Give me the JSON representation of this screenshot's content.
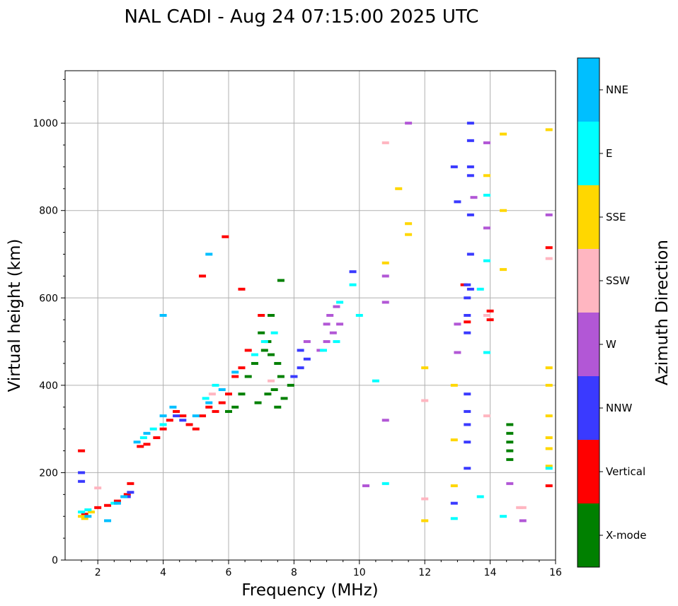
{
  "chart_data": {
    "type": "scatter",
    "title": "NAL CADI - Aug 24 07:15:00 2025 UTC",
    "xlabel": "Frequency (MHz)",
    "ylabel": "Virtual height (km)",
    "xlim": [
      1,
      16
    ],
    "ylim": [
      0,
      1120
    ],
    "xticks": [
      2,
      4,
      6,
      8,
      10,
      12,
      14,
      16
    ],
    "yticks": [
      0,
      200,
      400,
      600,
      800,
      1000
    ],
    "grid": true,
    "colorbar": {
      "label": "Azimuth Direction",
      "categories": [
        "X-mode",
        "Vertical",
        "NNW",
        "W",
        "SSW",
        "SSE",
        "E",
        "NNE"
      ],
      "colors": [
        "#008000",
        "#ff0000",
        "#3a3aff",
        "#b257d6",
        "#ffb6c1",
        "#ffd700",
        "#00ffff",
        "#00bfff"
      ]
    },
    "series": [
      {
        "name": "X-mode",
        "points": [
          [
            7.5,
            350
          ],
          [
            7.7,
            370
          ],
          [
            7.9,
            400
          ],
          [
            8.0,
            420
          ],
          [
            7.4,
            390
          ],
          [
            7.6,
            420
          ],
          [
            7.5,
            450
          ],
          [
            7.3,
            470
          ],
          [
            7.2,
            500
          ],
          [
            7.0,
            520
          ],
          [
            7.1,
            480
          ],
          [
            6.8,
            450
          ],
          [
            6.6,
            420
          ],
          [
            6.4,
            380
          ],
          [
            6.2,
            350
          ],
          [
            6.0,
            340
          ],
          [
            6.9,
            360
          ],
          [
            7.2,
            380
          ],
          [
            7.6,
            640
          ],
          [
            7.3,
            560
          ],
          [
            14.6,
            230
          ],
          [
            14.6,
            250
          ],
          [
            14.6,
            270
          ],
          [
            14.6,
            290
          ],
          [
            14.6,
            310
          ]
        ]
      },
      {
        "name": "Vertical",
        "points": [
          [
            1.5,
            250
          ],
          [
            1.6,
            105
          ],
          [
            2.0,
            120
          ],
          [
            2.3,
            125
          ],
          [
            2.6,
            135
          ],
          [
            2.9,
            150
          ],
          [
            3.0,
            175
          ],
          [
            3.3,
            260
          ],
          [
            3.5,
            265
          ],
          [
            3.8,
            280
          ],
          [
            4.0,
            300
          ],
          [
            4.2,
            320
          ],
          [
            4.4,
            340
          ],
          [
            4.6,
            330
          ],
          [
            4.8,
            310
          ],
          [
            5.0,
            300
          ],
          [
            5.2,
            330
          ],
          [
            5.4,
            350
          ],
          [
            5.6,
            340
          ],
          [
            5.8,
            360
          ],
          [
            6.0,
            380
          ],
          [
            6.2,
            420
          ],
          [
            6.4,
            440
          ],
          [
            6.6,
            480
          ],
          [
            5.2,
            650
          ],
          [
            5.9,
            740
          ],
          [
            6.4,
            620
          ],
          [
            7.0,
            560
          ],
          [
            13.2,
            630
          ],
          [
            13.3,
            545
          ],
          [
            14.0,
            550
          ],
          [
            14.0,
            570
          ],
          [
            15.8,
            715
          ],
          [
            15.8,
            170
          ]
        ]
      },
      {
        "name": "NNW",
        "points": [
          [
            1.5,
            200
          ],
          [
            1.5,
            180
          ],
          [
            2.9,
            145
          ],
          [
            3.0,
            155
          ],
          [
            4.4,
            330
          ],
          [
            4.6,
            320
          ],
          [
            8.0,
            420
          ],
          [
            8.2,
            440
          ],
          [
            8.4,
            460
          ],
          [
            8.2,
            480
          ],
          [
            9.8,
            660
          ],
          [
            13.3,
            210
          ],
          [
            13.3,
            270
          ],
          [
            13.3,
            310
          ],
          [
            13.3,
            340
          ],
          [
            13.3,
            380
          ],
          [
            13.3,
            520
          ],
          [
            13.3,
            560
          ],
          [
            13.3,
            600
          ],
          [
            13.3,
            630
          ],
          [
            13.4,
            620
          ],
          [
            13.4,
            700
          ],
          [
            13.4,
            790
          ],
          [
            13.4,
            880
          ],
          [
            13.4,
            900
          ],
          [
            13.4,
            960
          ],
          [
            13.4,
            1000
          ],
          [
            13.0,
            820
          ],
          [
            12.9,
            900
          ],
          [
            12.9,
            130
          ]
        ]
      },
      {
        "name": "W",
        "points": [
          [
            8.8,
            480
          ],
          [
            9.0,
            500
          ],
          [
            9.2,
            520
          ],
          [
            9.4,
            540
          ],
          [
            9.1,
            560
          ],
          [
            9.3,
            580
          ],
          [
            9.0,
            540
          ],
          [
            8.4,
            500
          ],
          [
            10.8,
            650
          ],
          [
            10.8,
            590
          ],
          [
            10.8,
            320
          ],
          [
            11.5,
            1000
          ],
          [
            13.0,
            475
          ],
          [
            13.0,
            540
          ],
          [
            13.5,
            830
          ],
          [
            13.9,
            760
          ],
          [
            13.9,
            955
          ],
          [
            14.6,
            175
          ],
          [
            15.0,
            90
          ],
          [
            15.8,
            790
          ],
          [
            10.2,
            170
          ]
        ]
      },
      {
        "name": "SSW",
        "points": [
          [
            2.0,
            165
          ],
          [
            5.5,
            380
          ],
          [
            7.3,
            410
          ],
          [
            12.0,
            365
          ],
          [
            12.0,
            140
          ],
          [
            13.9,
            330
          ],
          [
            13.9,
            560
          ],
          [
            14.9,
            120
          ],
          [
            15.0,
            120
          ],
          [
            15.8,
            690
          ],
          [
            10.8,
            955
          ]
        ]
      },
      {
        "name": "SSE",
        "points": [
          [
            1.5,
            100
          ],
          [
            1.6,
            95
          ],
          [
            1.8,
            110
          ],
          [
            10.8,
            680
          ],
          [
            11.2,
            850
          ],
          [
            11.5,
            770
          ],
          [
            11.5,
            745
          ],
          [
            12.0,
            440
          ],
          [
            12.0,
            90
          ],
          [
            12.9,
            400
          ],
          [
            12.9,
            275
          ],
          [
            12.9,
            170
          ],
          [
            14.4,
            800
          ],
          [
            14.4,
            665
          ],
          [
            14.4,
            975
          ],
          [
            13.9,
            880
          ],
          [
            15.8,
            985
          ],
          [
            15.8,
            440
          ],
          [
            15.8,
            400
          ],
          [
            15.8,
            330
          ],
          [
            15.8,
            280
          ],
          [
            15.8,
            255
          ],
          [
            15.8,
            215
          ]
        ]
      },
      {
        "name": "E",
        "points": [
          [
            1.5,
            110
          ],
          [
            1.7,
            115
          ],
          [
            2.5,
            130
          ],
          [
            3.4,
            280
          ],
          [
            3.7,
            300
          ],
          [
            4.0,
            310
          ],
          [
            5.3,
            370
          ],
          [
            5.6,
            400
          ],
          [
            6.8,
            470
          ],
          [
            7.1,
            500
          ],
          [
            7.4,
            520
          ],
          [
            8.9,
            480
          ],
          [
            9.3,
            500
          ],
          [
            9.4,
            590
          ],
          [
            9.8,
            630
          ],
          [
            10.0,
            560
          ],
          [
            10.5,
            410
          ],
          [
            10.8,
            175
          ],
          [
            12.9,
            95
          ],
          [
            13.7,
            145
          ],
          [
            13.7,
            620
          ],
          [
            13.9,
            835
          ],
          [
            13.9,
            685
          ],
          [
            13.9,
            475
          ],
          [
            14.4,
            100
          ],
          [
            15.8,
            210
          ]
        ]
      },
      {
        "name": "NNE",
        "points": [
          [
            1.7,
            100
          ],
          [
            2.3,
            90
          ],
          [
            2.6,
            130
          ],
          [
            2.8,
            145
          ],
          [
            3.2,
            270
          ],
          [
            3.5,
            290
          ],
          [
            4.0,
            330
          ],
          [
            4.3,
            350
          ],
          [
            5.0,
            330
          ],
          [
            5.4,
            360
          ],
          [
            5.8,
            390
          ],
          [
            6.2,
            430
          ],
          [
            4.0,
            560
          ],
          [
            5.4,
            700
          ]
        ]
      }
    ]
  }
}
